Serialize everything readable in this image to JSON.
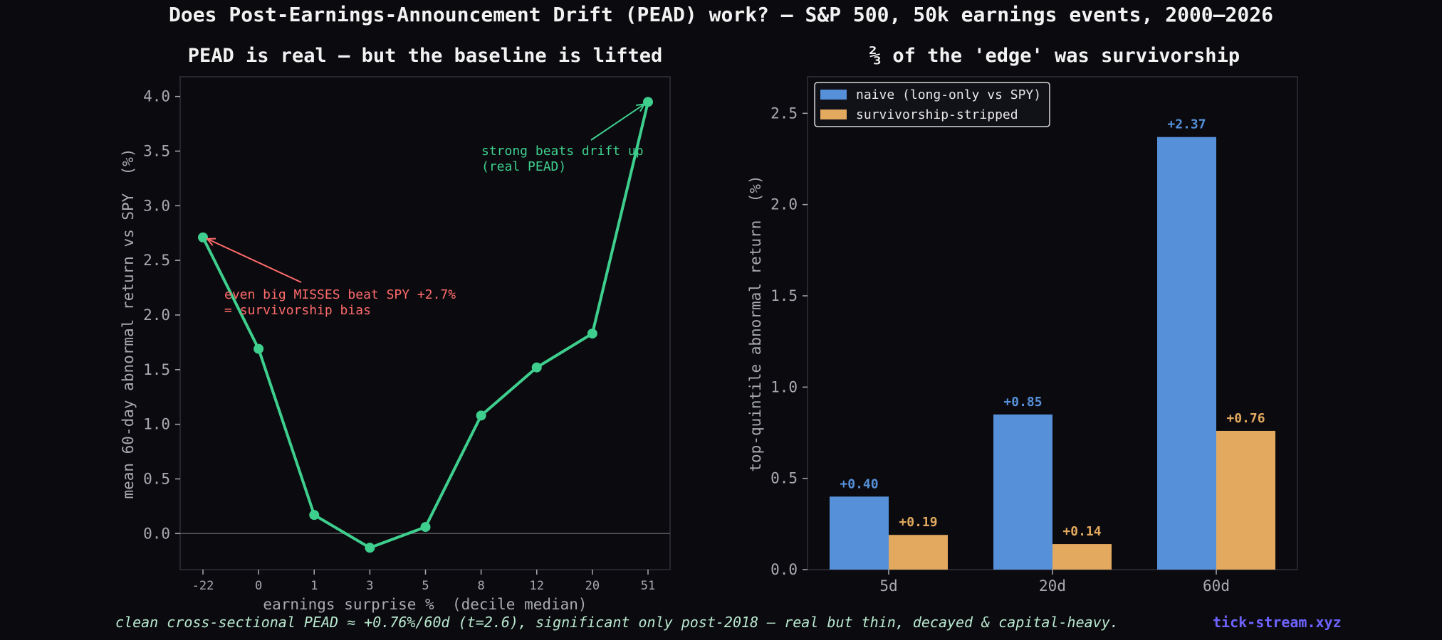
{
  "suptitle": "Does Post-Earnings-Announcement Drift (PEAD) work? — S&P 500, 50k earnings events, 2000–2026",
  "footnote": "clean cross-sectional PEAD ≈ +0.76%/60d (t=2.6), significant only post-2018 — real but thin, decayed & capital-heavy.",
  "brand": "tick-stream.xyz",
  "colors": {
    "background": "#0b0b0f",
    "line": "#3ecf8e",
    "annotation_red": "#ff6b6b",
    "naive": "#5590d9",
    "stripped": "#e3a95f",
    "text": "#f2f2f2",
    "axis_text": "#a9a9b2"
  },
  "chart_data": [
    {
      "type": "line",
      "title": "PEAD is real — but the baseline is lifted",
      "xlabel": "earnings surprise %  (decile median)",
      "ylabel": "mean 60-day abnormal return vs SPY  (%)",
      "categories": [
        "-22",
        "0",
        "1",
        "3",
        "5",
        "8",
        "12",
        "20",
        "51"
      ],
      "values": [
        2.71,
        1.69,
        0.17,
        -0.13,
        0.06,
        1.08,
        1.52,
        1.83,
        3.95
      ],
      "ylim": [
        -0.33,
        4.18
      ],
      "yticks": [
        "0.0",
        "0.5",
        "1.0",
        "1.5",
        "2.0",
        "2.5",
        "3.0",
        "3.5",
        "4.0"
      ],
      "zero_line": true,
      "annotations": [
        {
          "text_lines": [
            "even big MISSES beat SPY +2.7%",
            "= survivorship bias"
          ],
          "point_index": 0,
          "color": "red"
        },
        {
          "text_lines": [
            "strong beats drift up",
            "(real PEAD)"
          ],
          "point_index": 8,
          "color": "green"
        }
      ]
    },
    {
      "type": "bar",
      "title": "⅔ of the 'edge' was survivorship",
      "ylabel": "top-quintile abnormal return  (%)",
      "categories": [
        "5d",
        "20d",
        "60d"
      ],
      "series": [
        {
          "name": "naive (long-only vs SPY)",
          "values": [
            0.4,
            0.85,
            2.37
          ],
          "labels": [
            "+0.40",
            "+0.85",
            "+2.37"
          ]
        },
        {
          "name": "survivorship-stripped",
          "values": [
            0.19,
            0.14,
            0.76
          ],
          "labels": [
            "+0.19",
            "+0.14",
            "+0.76"
          ]
        }
      ],
      "ylim": [
        0,
        2.7
      ],
      "yticks": [
        "0.0",
        "0.5",
        "1.0",
        "1.5",
        "2.0",
        "2.5"
      ],
      "legend": "top-left"
    }
  ]
}
